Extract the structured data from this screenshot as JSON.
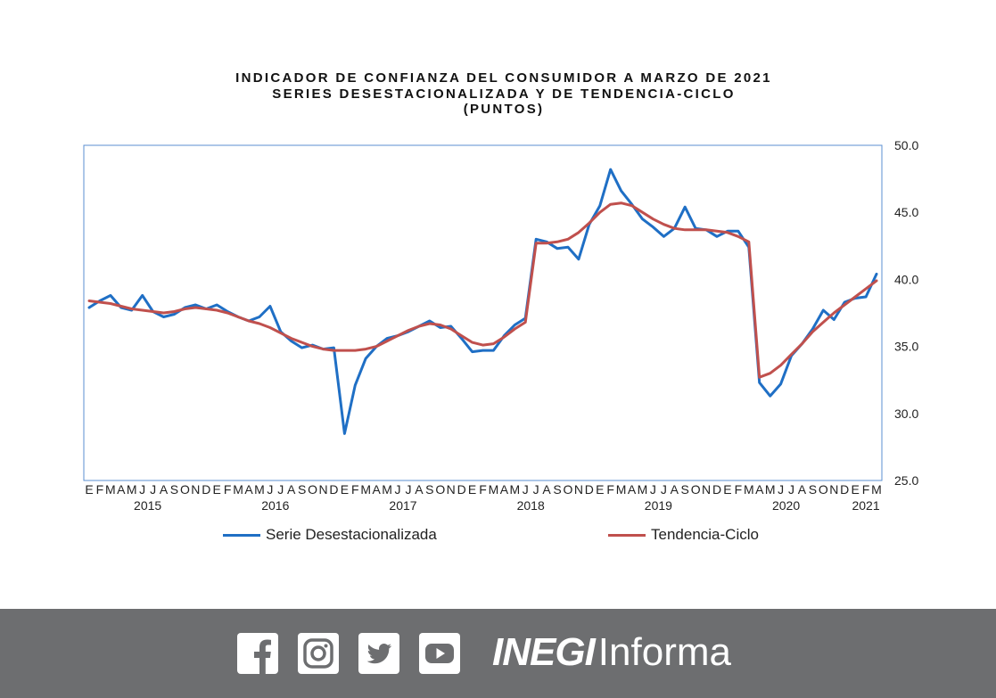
{
  "chart_data": {
    "type": "line",
    "title": [
      "INDICADOR DE CONFIANZA DEL CONSUMIDOR A MARZO DE 2021",
      "SERIES DESESTACIONALIZADA  Y DE TENDENCIA-CICLO",
      "(PUNTOS)"
    ],
    "y_axis": {
      "position": "right",
      "ylim": [
        25.0,
        50.0
      ],
      "ticks": [
        "50.0",
        "45.0",
        "40.0",
        "35.0",
        "30.0",
        "25.0"
      ]
    },
    "x_month_labels": [
      "E",
      "F",
      "M",
      "A",
      "M",
      "J",
      "J",
      "A",
      "S",
      "O",
      "N",
      "D",
      "E",
      "F",
      "M",
      "A",
      "M",
      "J",
      "J",
      "A",
      "S",
      "O",
      "N",
      "D",
      "E",
      "F",
      "M",
      "A",
      "M",
      "J",
      "J",
      "A",
      "S",
      "O",
      "N",
      "D",
      "E",
      "F",
      "M",
      "A",
      "M",
      "J",
      "J",
      "A",
      "S",
      "O",
      "N",
      "D",
      "E",
      "F",
      "M",
      "A",
      "M",
      "J",
      "J",
      "A",
      "S",
      "O",
      "N",
      "D",
      "E",
      "F",
      "M",
      "A",
      "M",
      "J",
      "J",
      "A",
      "S",
      "O",
      "N",
      "D",
      "E",
      "F",
      "M"
    ],
    "x_year_labels": [
      {
        "year": "2015",
        "month_index": 5.5
      },
      {
        "year": "2016",
        "month_index": 17.5
      },
      {
        "year": "2017",
        "month_index": 29.5
      },
      {
        "year": "2018",
        "month_index": 41.5
      },
      {
        "year": "2019",
        "month_index": 53.5
      },
      {
        "year": "2020",
        "month_index": 65.5
      },
      {
        "year": "2021",
        "month_index": 73.0
      }
    ],
    "grid": false,
    "legend_position": "bottom",
    "series": [
      {
        "name": "Serie Desestacionalizada",
        "color": "#1f6fc5",
        "values": [
          37.9,
          38.4,
          38.8,
          37.9,
          37.7,
          38.8,
          37.6,
          37.2,
          37.4,
          37.9,
          38.1,
          37.8,
          38.1,
          37.6,
          37.2,
          36.9,
          37.2,
          38.0,
          36.1,
          35.4,
          34.9,
          35.1,
          34.8,
          34.9,
          28.5,
          32.1,
          34.1,
          35.0,
          35.6,
          35.8,
          36.1,
          36.5,
          36.9,
          36.4,
          36.5,
          35.6,
          34.6,
          34.7,
          34.7,
          35.8,
          36.6,
          37.1,
          43.0,
          42.8,
          42.3,
          42.4,
          41.5,
          44.1,
          45.5,
          48.2,
          46.6,
          45.6,
          44.5,
          43.9,
          43.2,
          43.8,
          45.4,
          43.8,
          43.7,
          43.2,
          43.6,
          43.6,
          42.4,
          32.3,
          31.3,
          32.2,
          34.3,
          35.2,
          36.3,
          37.7,
          37.0,
          38.3,
          38.6,
          38.7,
          40.4
        ]
      },
      {
        "name": "Tendencia-Ciclo",
        "color": "#c0504d",
        "values": [
          38.4,
          38.3,
          38.2,
          38.0,
          37.8,
          37.7,
          37.6,
          37.5,
          37.6,
          37.8,
          37.9,
          37.8,
          37.7,
          37.5,
          37.2,
          36.9,
          36.7,
          36.4,
          36.0,
          35.6,
          35.3,
          35.0,
          34.8,
          34.7,
          34.7,
          34.7,
          34.8,
          35.0,
          35.4,
          35.8,
          36.2,
          36.5,
          36.7,
          36.6,
          36.3,
          35.8,
          35.3,
          35.1,
          35.2,
          35.7,
          36.3,
          36.8,
          42.7,
          42.7,
          42.8,
          43.0,
          43.5,
          44.2,
          45.0,
          45.6,
          45.7,
          45.5,
          45.0,
          44.5,
          44.1,
          43.8,
          43.7,
          43.7,
          43.7,
          43.6,
          43.5,
          43.2,
          42.8,
          32.7,
          33.0,
          33.6,
          34.4,
          35.2,
          36.1,
          36.8,
          37.5,
          38.1,
          38.7,
          39.3,
          39.9
        ]
      }
    ]
  },
  "footer": {
    "brand_bold": "INEGI",
    "brand_light": "Informa",
    "icons": [
      "facebook-icon",
      "instagram-icon",
      "twitter-icon",
      "youtube-icon"
    ]
  }
}
